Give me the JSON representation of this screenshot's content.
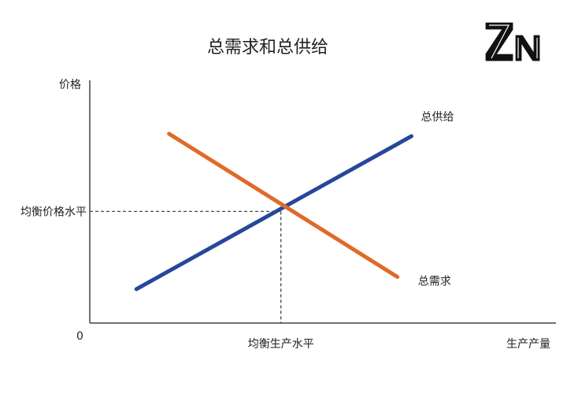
{
  "chart_data": {
    "type": "line",
    "title": "总需求和总供给",
    "xlabel": "生产产量",
    "ylabel": "价格",
    "origin_label": "0",
    "xlim": [
      0,
      10
    ],
    "ylim": [
      0,
      10
    ],
    "grid": false,
    "series": [
      {
        "name": "总供给",
        "color": "#26479a",
        "x": [
          1.0,
          6.9
        ],
        "y": [
          1.4,
          7.7
        ]
      },
      {
        "name": "总需求",
        "color": "#e06a2a",
        "x": [
          1.7,
          6.6
        ],
        "y": [
          7.8,
          1.9
        ]
      }
    ],
    "equilibrium": {
      "x": 4.1,
      "y": 4.6,
      "x_label": "均衡生产水平",
      "y_label": "均衡价格水平"
    }
  },
  "logo": {
    "text": "ZN",
    "color": "#111111"
  }
}
